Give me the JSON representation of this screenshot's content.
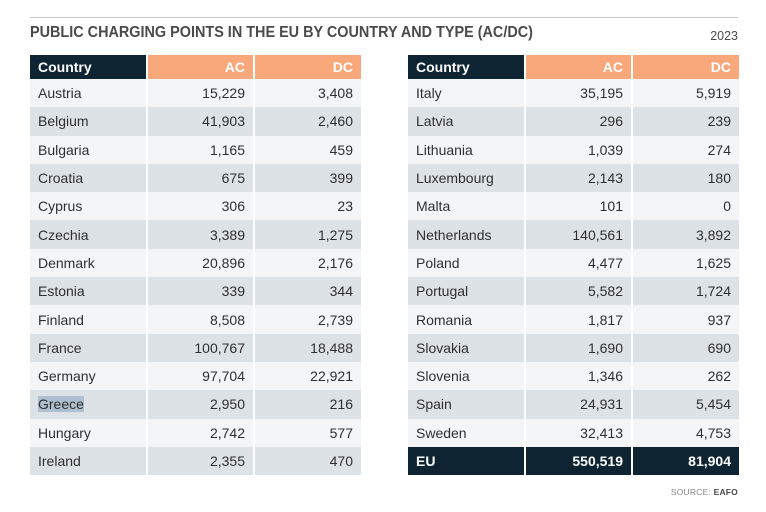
{
  "title": "PUBLIC CHARGING POINTS IN THE EU BY COUNTRY AND TYPE (AC/DC)",
  "year": "2023",
  "headers": {
    "country": "Country",
    "ac": "AC",
    "dc": "DC"
  },
  "left_rows": [
    {
      "country": "Austria",
      "ac": "15,229",
      "dc": "3,408"
    },
    {
      "country": "Belgium",
      "ac": "41,903",
      "dc": "2,460"
    },
    {
      "country": "Bulgaria",
      "ac": "1,165",
      "dc": "459"
    },
    {
      "country": "Croatia",
      "ac": "675",
      "dc": "399"
    },
    {
      "country": "Cyprus",
      "ac": "306",
      "dc": "23"
    },
    {
      "country": "Czechia",
      "ac": "3,389",
      "dc": "1,275"
    },
    {
      "country": "Denmark",
      "ac": "20,896",
      "dc": "2,176"
    },
    {
      "country": "Estonia",
      "ac": "339",
      "dc": "344"
    },
    {
      "country": "Finland",
      "ac": "8,508",
      "dc": "2,739"
    },
    {
      "country": "France",
      "ac": "100,767",
      "dc": "18,488"
    },
    {
      "country": "Germany",
      "ac": "97,704",
      "dc": "22,921"
    },
    {
      "country": "Greece",
      "ac": "2,950",
      "dc": "216"
    },
    {
      "country": "Hungary",
      "ac": "2,742",
      "dc": "577"
    },
    {
      "country": "Ireland",
      "ac": "2,355",
      "dc": "470"
    }
  ],
  "right_rows": [
    {
      "country": "Italy",
      "ac": "35,195",
      "dc": "5,919"
    },
    {
      "country": "Latvia",
      "ac": "296",
      "dc": "239"
    },
    {
      "country": "Lithuania",
      "ac": "1,039",
      "dc": "274"
    },
    {
      "country": "Luxembourg",
      "ac": "2,143",
      "dc": "180"
    },
    {
      "country": "Malta",
      "ac": "101",
      "dc": "0"
    },
    {
      "country": "Netherlands",
      "ac": "140,561",
      "dc": "3,892"
    },
    {
      "country": "Poland",
      "ac": "4,477",
      "dc": "1,625"
    },
    {
      "country": "Portugal",
      "ac": "5,582",
      "dc": "1,724"
    },
    {
      "country": "Romania",
      "ac": "1,817",
      "dc": "937"
    },
    {
      "country": "Slovakia",
      "ac": "1,690",
      "dc": "690"
    },
    {
      "country": "Slovenia",
      "ac": "1,346",
      "dc": "262"
    },
    {
      "country": "Spain",
      "ac": "24,931",
      "dc": "5,454"
    },
    {
      "country": "Sweden",
      "ac": "32,413",
      "dc": "4,753"
    }
  ],
  "total": {
    "country": "EU",
    "ac": "550,519",
    "dc": "81,904"
  },
  "source_label": "SOURCE:",
  "source_name": "EAFO",
  "colors": {
    "header_dark": "#0e2433",
    "header_accent": "#f8a87a",
    "row_light": "#f3f5f7",
    "row_dark": "#dde2e6",
    "selection": "#aebfcf"
  }
}
